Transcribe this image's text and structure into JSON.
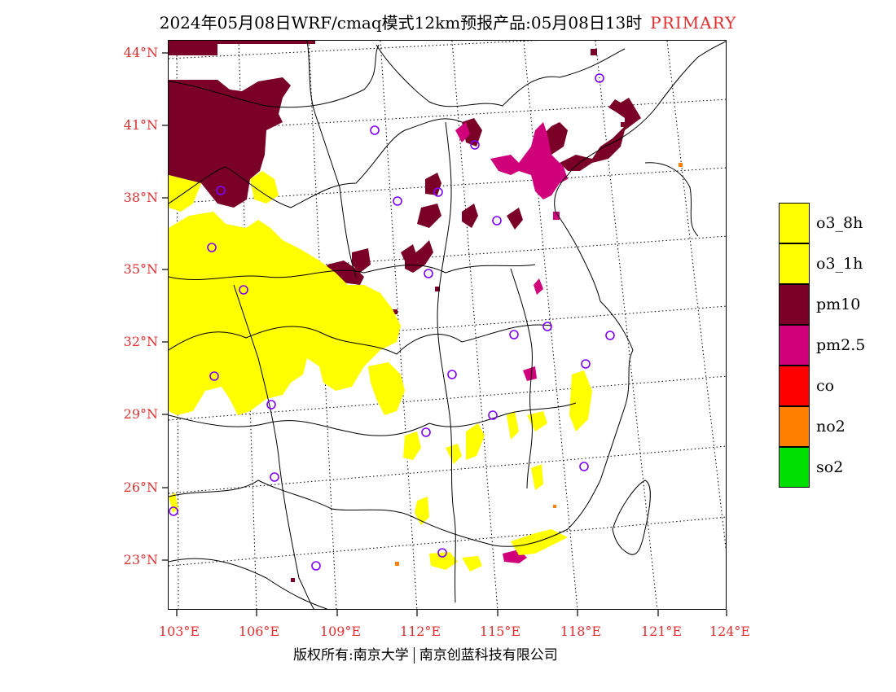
{
  "title": {
    "main": "2024年05月08日WRF/cmaq模式12km预报产品:05月08日13时",
    "tag": "PRIMARY"
  },
  "axes": {
    "lat_labels": [
      "44°N",
      "41°N",
      "38°N",
      "35°N",
      "32°N",
      "29°N",
      "26°N",
      "23°N"
    ],
    "lon_labels": [
      "103°E",
      "106°E",
      "109°E",
      "112°E",
      "115°E",
      "118°E",
      "121°E",
      "124°E"
    ]
  },
  "legend": {
    "items": [
      {
        "label": "o3_8h",
        "color": "#ffff00"
      },
      {
        "label": "o3_1h",
        "color": "#ffff00"
      },
      {
        "label": "pm10",
        "color": "#7a0028"
      },
      {
        "label": "pm2.5",
        "color": "#d0007a"
      },
      {
        "label": "co",
        "color": "#ff0000"
      },
      {
        "label": "no2",
        "color": "#ff8000"
      },
      {
        "label": "so2",
        "color": "#00e000"
      }
    ]
  },
  "footer": {
    "left": "版权所有:南京大学",
    "right": "南京创蓝科技有限公司"
  },
  "colors": {
    "label_red": "#e03030",
    "station_circle": "#8000ff"
  }
}
